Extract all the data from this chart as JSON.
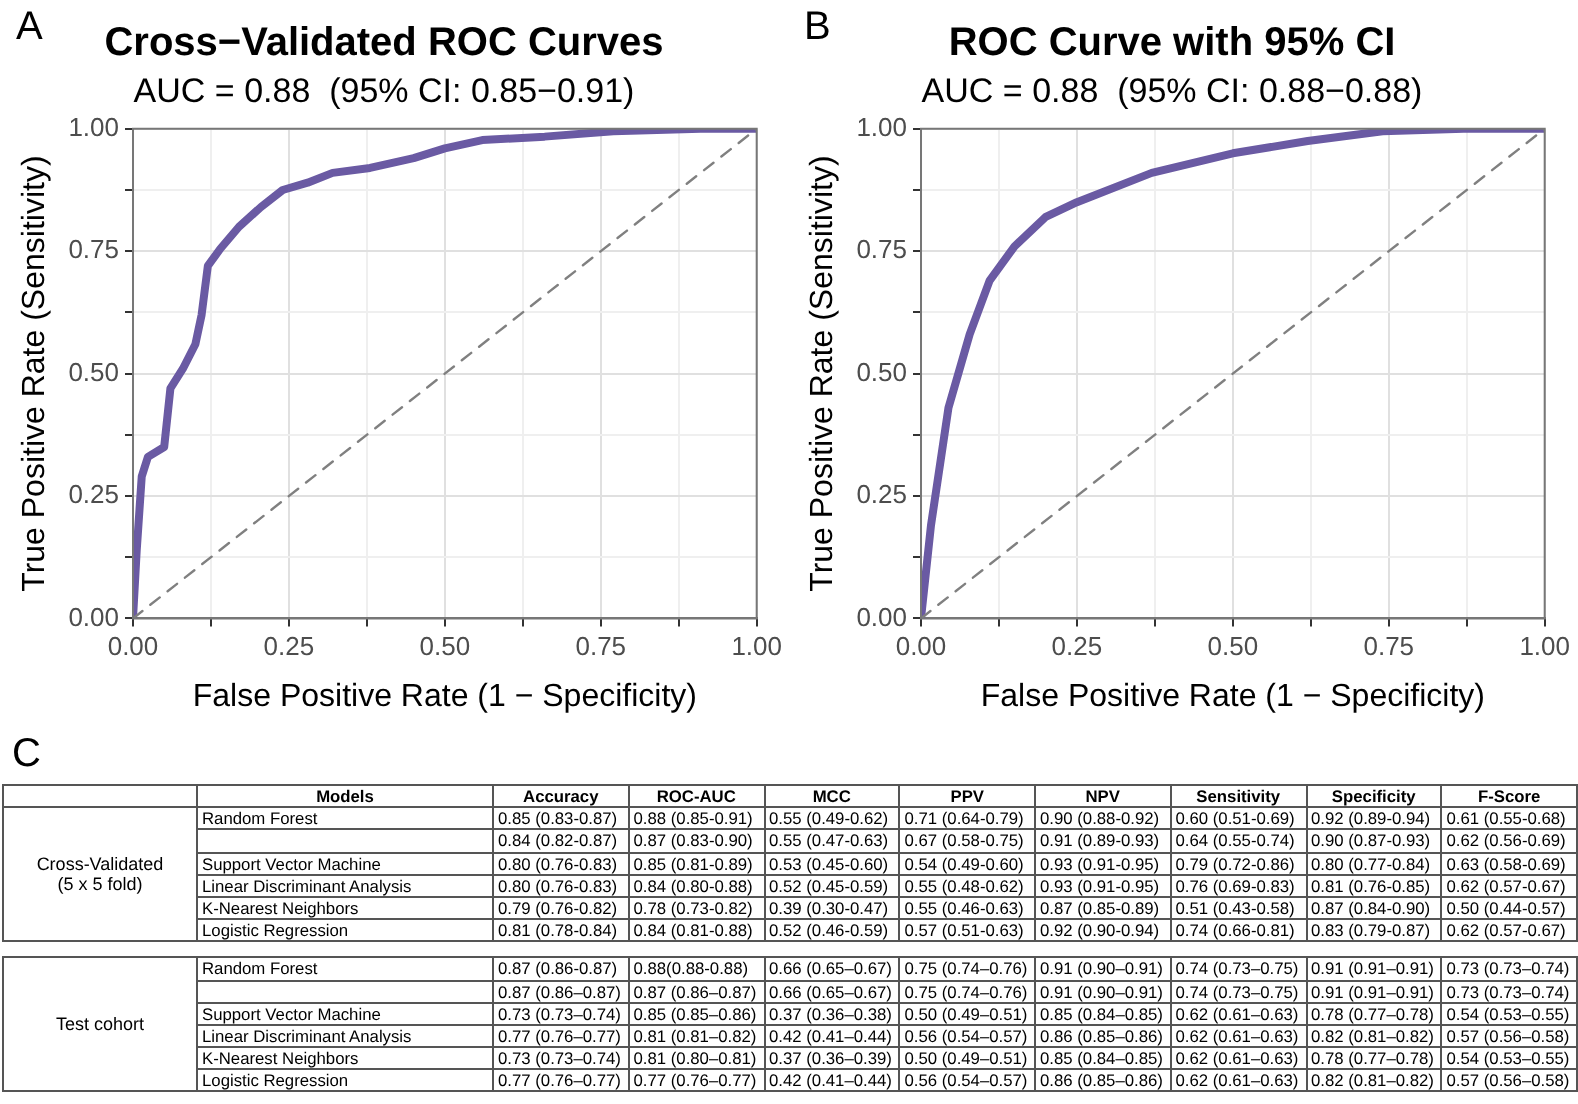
{
  "chart_data": [
    {
      "type": "line",
      "title": "Cross−Validated ROC Curves",
      "subtitle": "AUC = 0.88  (95% CI: 0.85−0.91)",
      "xlabel": "False Positive Rate (1 − Specificity)",
      "ylabel": "True Positive Rate (Sensitivity)",
      "annotations": [
        "A"
      ],
      "series": [
        {
          "type": "line",
          "color": "#6a5aa3",
          "x": [
            0,
            0.006,
            0.014,
            0.024,
            0.05,
            0.06,
            0.08,
            0.1,
            0.11,
            0.12,
            0.14,
            0.17,
            0.205,
            0.24,
            0.28,
            0.32,
            0.38,
            0.45,
            0.5,
            0.56,
            0.66,
            0.77,
            0.91,
            1
          ],
          "values": [
            0,
            0.14,
            0.29,
            0.33,
            0.35,
            0.47,
            0.51,
            0.56,
            0.62,
            0.72,
            0.755,
            0.8,
            0.84,
            0.875,
            0.89,
            0.91,
            0.92,
            0.94,
            0.96,
            0.977,
            0.984,
            0.995,
            1,
            1
          ],
          "line_style": "solid"
        },
        {
          "type": "line",
          "color": "#808080",
          "x": [
            0,
            1
          ],
          "values": [
            0,
            1
          ],
          "line_style": "dashed"
        }
      ],
      "xlim": [
        0,
        1
      ],
      "ylim": [
        0,
        1
      ],
      "xticks": [
        {
          "value": 0,
          "label": "0.00"
        },
        {
          "value": 0.125,
          "label": null
        },
        {
          "value": 0.25,
          "label": "0.25"
        },
        {
          "value": 0.375,
          "label": null
        },
        {
          "value": 0.5,
          "label": "0.50"
        },
        {
          "value": 0.625,
          "label": null
        },
        {
          "value": 0.75,
          "label": "0.75"
        },
        {
          "value": 0.875,
          "label": null
        },
        {
          "value": 1,
          "label": "1.00"
        }
      ],
      "yticks": [
        {
          "value": 0,
          "label": "0.00"
        },
        {
          "value": 0.125,
          "label": null
        },
        {
          "value": 0.25,
          "label": "0.25"
        },
        {
          "value": 0.375,
          "label": null
        },
        {
          "value": 0.5,
          "label": "0.50"
        },
        {
          "value": 0.625,
          "label": null
        },
        {
          "value": 0.75,
          "label": "0.75"
        },
        {
          "value": 0.875,
          "label": null
        },
        {
          "value": 1,
          "label": "1.00"
        }
      ],
      "grid": true,
      "marker": "none"
    },
    {
      "type": "line",
      "title": "ROC Curve with 95% CI",
      "subtitle": "AUC = 0.88  (95% CI: 0.88−0.88)",
      "xlabel": "False Positive Rate (1 − Specificity)",
      "ylabel": "True Positive Rate (Sensitivity)",
      "annotations": [
        "B"
      ],
      "series": [
        {
          "type": "line",
          "color": "#6a5aa3",
          "x": [
            0,
            0.016,
            0.044,
            0.078,
            0.11,
            0.15,
            0.2,
            0.25,
            0.37,
            0.5,
            0.62,
            0.74,
            0.87,
            1
          ],
          "values": [
            0,
            0.19,
            0.43,
            0.58,
            0.69,
            0.76,
            0.82,
            0.85,
            0.91,
            0.95,
            0.975,
            0.995,
            1,
            1
          ],
          "line_style": "solid"
        },
        {
          "type": "line",
          "color": "#808080",
          "x": [
            0,
            1
          ],
          "values": [
            0,
            1
          ],
          "line_style": "dashed"
        }
      ],
      "xlim": [
        0,
        1
      ],
      "ylim": [
        0,
        1
      ],
      "xticks": [
        {
          "value": 0,
          "label": "0.00"
        },
        {
          "value": 0.125,
          "label": null
        },
        {
          "value": 0.25,
          "label": "0.25"
        },
        {
          "value": 0.375,
          "label": null
        },
        {
          "value": 0.5,
          "label": "0.50"
        },
        {
          "value": 0.625,
          "label": null
        },
        {
          "value": 0.75,
          "label": "0.75"
        },
        {
          "value": 0.875,
          "label": null
        },
        {
          "value": 1,
          "label": "1.00"
        }
      ],
      "yticks": [
        {
          "value": 0,
          "label": "0.00"
        },
        {
          "value": 0.125,
          "label": null
        },
        {
          "value": 0.25,
          "label": "0.25"
        },
        {
          "value": 0.375,
          "label": null
        },
        {
          "value": 0.5,
          "label": "0.50"
        },
        {
          "value": 0.625,
          "label": null
        },
        {
          "value": 0.75,
          "label": "0.75"
        },
        {
          "value": 0.875,
          "label": null
        },
        {
          "value": 1,
          "label": "1.00"
        }
      ],
      "grid": true,
      "marker": "none"
    },
    {
      "type": "other",
      "annotations": [
        "C"
      ],
      "ylabel": "Models",
      "categories": [
        "Accuracy",
        "ROC-AUC",
        "MCC",
        "PPV",
        "NPV",
        "Sensitivity",
        "Specificity",
        "F-Score"
      ],
      "y_categories": [
        "Random Forest",
        null,
        "Support Vector Machine",
        "Linear Discriminant Analysis",
        "K-Nearest Neighbors",
        "Logistic Regression",
        "Random Forest",
        null,
        "Support Vector Machine",
        "Linear Discriminant Analysis",
        "K-Nearest Neighbors",
        "Logistic Regression"
      ],
      "y2_categories": [
        "Cross-Validated (5 x 5 fold)",
        null,
        null,
        null,
        null,
        null,
        "Test cohort",
        null,
        null,
        null,
        null,
        null
      ],
      "cell_labels": [
        [
          "0.85 (0.83-0.87)",
          "0.88 (0.85-0.91)",
          "0.55 (0.49-0.62)",
          "0.71 (0.64-0.79)",
          "0.90 (0.88-0.92)",
          "0.60 (0.51-0.69)",
          "0.92 (0.89-0.94)",
          "0.61 (0.55-0.68)"
        ],
        [
          "0.84 (0.82-0.87)",
          "0.87 (0.83-0.90)",
          "0.55 (0.47-0.63)",
          "0.67 (0.58-0.75)",
          "0.91 (0.89-0.93)",
          "0.64 (0.55-0.74)",
          "0.90 (0.87-0.93)",
          "0.62 (0.56-0.69)"
        ],
        [
          "0.80 (0.76-0.83)",
          "0.85 (0.81-0.89)",
          "0.53 (0.45-0.60)",
          "0.54 (0.49-0.60)",
          "0.93 (0.91-0.95)",
          "0.79 (0.72-0.86)",
          "0.80 (0.77-0.84)",
          "0.63 (0.58-0.69)"
        ],
        [
          "0.80 (0.76-0.83)",
          "0.84 (0.80-0.88)",
          "0.52 (0.45-0.59)",
          "0.55 (0.48-0.62)",
          "0.93 (0.91-0.95)",
          "0.76 (0.69-0.83)",
          "0.81 (0.76-0.85)",
          "0.62 (0.57-0.67)"
        ],
        [
          "0.79 (0.76-0.82)",
          "0.78 (0.73-0.82)",
          "0.39 (0.30-0.47)",
          "0.55 (0.46-0.63)",
          "0.87 (0.85-0.89)",
          "0.51 (0.43-0.58)",
          "0.87 (0.84-0.90)",
          "0.50 (0.44-0.57)"
        ],
        [
          "0.81 (0.78-0.84)",
          "0.84 (0.81-0.88)",
          "0.52 (0.46-0.59)",
          "0.57 (0.51-0.63)",
          "0.92 (0.90-0.94)",
          "0.74 (0.66-0.81)",
          "0.83 (0.79-0.87)",
          "0.62 (0.57-0.67)"
        ],
        [
          "0.87 (0.86-0.87)",
          "0.88(0.88-0.88)",
          "0.66 (0.65–0.67)",
          "0.75 (0.74–0.76)",
          "0.91 (0.90–0.91)",
          "0.74 (0.73–0.75)",
          "0.91 (0.91–0.91)",
          "0.73 (0.73–0.74)"
        ],
        [
          "0.87 (0.86–0.87)",
          "0.87 (0.86–0.87)",
          "0.66 (0.65–0.67)",
          "0.75 (0.74–0.76)",
          "0.91 (0.90–0.91)",
          "0.74 (0.73–0.75)",
          "0.91 (0.91–0.91)",
          "0.73 (0.73–0.74)"
        ],
        [
          "0.73 (0.73–0.74)",
          "0.85 (0.85–0.86)",
          "0.37 (0.36–0.38)",
          "0.50 (0.49–0.51)",
          "0.85 (0.84–0.85)",
          "0.62 (0.61–0.63)",
          "0.78 (0.77–0.78)",
          "0.54 (0.53–0.55)"
        ],
        [
          "0.77 (0.76–0.77)",
          "0.81 (0.81–0.82)",
          "0.42 (0.41–0.44)",
          "0.56 (0.54–0.57)",
          "0.86 (0.85–0.86)",
          "0.62 (0.61–0.63)",
          "0.82 (0.81–0.82)",
          "0.57 (0.56–0.58)"
        ],
        [
          "0.73 (0.73–0.74)",
          "0.81 (0.80–0.81)",
          "0.37 (0.36–0.39)",
          "0.50 (0.49–0.51)",
          "0.85 (0.84–0.85)",
          "0.62 (0.61–0.63)",
          "0.78 (0.77–0.78)",
          "0.54 (0.53–0.55)"
        ],
        [
          "0.77 (0.76–0.77)",
          "0.77 (0.76–0.77)",
          "0.42 (0.41–0.44)",
          "0.56 (0.54–0.57)",
          "0.86 (0.85–0.86)",
          "0.62 (0.61–0.63)",
          "0.82 (0.81–0.82)",
          "0.57 (0.56–0.58)"
        ]
      ]
    }
  ]
}
